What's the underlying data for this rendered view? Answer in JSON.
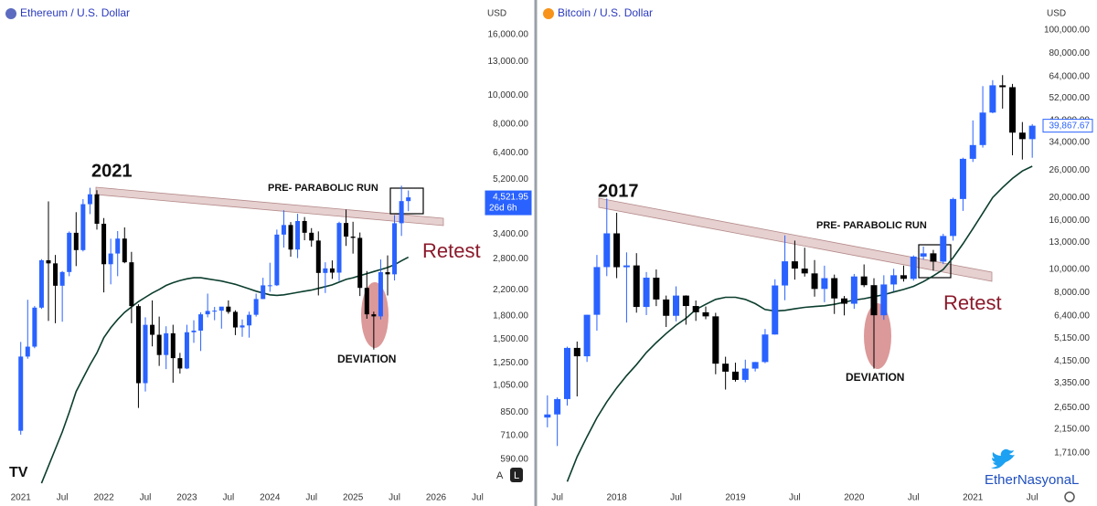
{
  "chart_data": [
    {
      "type": "candlestick",
      "title": "Ethereum / U.S. Dollar",
      "currency": "USD",
      "log_scale": true,
      "grid": false,
      "up_color": "#2962ff",
      "down_color": "#000000",
      "x": [
        "2021-01",
        "2021-02",
        "2021-03",
        "2021-04",
        "2021-05",
        "2021-06",
        "2021-07",
        "2021-08",
        "2021-09",
        "2021-10",
        "2021-11",
        "2021-12",
        "2022-01",
        "2022-02",
        "2022-03",
        "2022-04",
        "2022-05",
        "2022-06",
        "2022-07",
        "2022-08",
        "2022-09",
        "2022-10",
        "2022-11",
        "2022-12",
        "2023-01",
        "2023-02",
        "2023-03",
        "2023-04",
        "2023-05",
        "2023-06",
        "2023-07",
        "2023-08",
        "2023-09",
        "2023-10",
        "2023-11",
        "2023-12",
        "2024-01",
        "2024-02",
        "2024-03",
        "2024-04",
        "2024-05",
        "2024-06",
        "2024-07",
        "2024-08",
        "2024-09",
        "2024-10",
        "2024-11",
        "2024-12",
        "2025-01",
        "2025-02",
        "2025-03",
        "2025-04",
        "2025-05",
        "2025-06",
        "2025-07",
        "2025-08",
        "2025-09"
      ],
      "open": [
        737,
        1312,
        1417,
        1919,
        2773,
        2707,
        2275,
        2531,
        3433,
        3001,
        4288,
        4631,
        3683,
        2689,
        2922,
        3282,
        2730,
        1942,
        1067,
        1679,
        1554,
        1328,
        1572,
        1296,
        1196,
        1585,
        1605,
        1822,
        1870,
        1874,
        1934,
        1857,
        1645,
        1671,
        1815,
        2052,
        2282,
        2283,
        3385,
        3647,
        3014,
        3762,
        3434,
        3232,
        2513,
        2603,
        2519,
        3705,
        3333,
        3300,
        2237,
        1822,
        1793,
        2528,
        2486,
        3698,
        4392
      ],
      "high": [
        1470,
        2040,
        1943,
        2797,
        4380,
        2890,
        2550,
        3470,
        4030,
        4460,
        4870,
        4780,
        3850,
        3280,
        3480,
        3580,
        2960,
        1970,
        1780,
        2030,
        1790,
        1660,
        1680,
        1350,
        1680,
        1740,
        1850,
        2140,
        1930,
        1930,
        2030,
        1880,
        1750,
        1860,
        2140,
        2420,
        2720,
        3520,
        4090,
        3730,
        3980,
        3880,
        3560,
        3470,
        2730,
        2770,
        3740,
        4110,
        3740,
        3440,
        2550,
        1860,
        2790,
        2880,
        3940,
        4950,
        4770
      ],
      "low": [
        715,
        1290,
        1400,
        1900,
        1730,
        1700,
        1720,
        2450,
        2650,
        2970,
        3970,
        3520,
        2160,
        2300,
        2450,
        2710,
        1700,
        880,
        1000,
        1420,
        1220,
        1190,
        1070,
        1150,
        1190,
        1460,
        1370,
        1780,
        1740,
        1630,
        1830,
        1550,
        1530,
        1520,
        1790,
        2050,
        2170,
        2270,
        3060,
        2850,
        2820,
        3240,
        3080,
        2110,
        2150,
        2400,
        2360,
        3100,
        2920,
        2100,
        1760,
        1385,
        1750,
        2110,
        2370,
        3350,
        4060
      ],
      "close": [
        1312,
        1417,
        1919,
        2773,
        2707,
        2275,
        2531,
        3433,
        3001,
        4288,
        4631,
        3683,
        2689,
        2922,
        3282,
        2730,
        1942,
        1067,
        1679,
        1554,
        1328,
        1572,
        1296,
        1196,
        1585,
        1605,
        1822,
        1870,
        1874,
        1934,
        1857,
        1645,
        1671,
        1815,
        2052,
        2282,
        2283,
        3385,
        3647,
        3014,
        3762,
        3434,
        3232,
        2513,
        2603,
        2519,
        3705,
        3333,
        3300,
        2237,
        1822,
        1793,
        2528,
        2486,
        3698,
        4392,
        4521.95
      ],
      "overlay": {
        "color": "#0b3d2e",
        "values": [
          null,
          null,
          null,
          490,
          560,
          640,
          730,
          850,
          1000,
          1110,
          1230,
          1350,
          1520,
          1640,
          1750,
          1850,
          1930,
          2010,
          2080,
          2150,
          2210,
          2280,
          2330,
          2370,
          2400,
          2420,
          2420,
          2400,
          2380,
          2360,
          2330,
          2300,
          2260,
          2220,
          2180,
          2150,
          2120,
          2110,
          2120,
          2140,
          2160,
          2180,
          2200,
          2230,
          2260,
          2290,
          2340,
          2390,
          2420,
          2460,
          2500,
          2540,
          2580,
          2620,
          2680,
          2760,
          2840
        ]
      },
      "last_price": {
        "value": 4521.95,
        "label": "4,521.95"
      },
      "countdown": "26d 6h",
      "xlim": [
        "2020-10",
        "2026-08"
      ],
      "xticks": [
        {
          "value": "2021-01",
          "label": "2021"
        },
        {
          "value": "2021-07",
          "label": "Jul"
        },
        {
          "value": "2022-01",
          "label": "2022"
        },
        {
          "value": "2022-07",
          "label": "Jul"
        },
        {
          "value": "2023-01",
          "label": "2023"
        },
        {
          "value": "2023-07",
          "label": "Jul"
        },
        {
          "value": "2024-01",
          "label": "2024"
        },
        {
          "value": "2024-07",
          "label": "Jul"
        },
        {
          "value": "2025-01",
          "label": "2025"
        },
        {
          "value": "2025-07",
          "label": "Jul"
        },
        {
          "value": "2026-01",
          "label": "2026"
        },
        {
          "value": "2026-07",
          "label": "Jul"
        }
      ],
      "ylim": [
        487,
        20960
      ],
      "yticks": [
        {
          "value": 590,
          "label": "590.00"
        },
        {
          "value": 710,
          "label": "710.00"
        },
        {
          "value": 850,
          "label": "850.00"
        },
        {
          "value": 1050,
          "label": "1,050.00"
        },
        {
          "value": 1250,
          "label": "1,250.00"
        },
        {
          "value": 1500,
          "label": "1,500.00"
        },
        {
          "value": 1800,
          "label": "1,800.00"
        },
        {
          "value": 2200,
          "label": "2,200.00"
        },
        {
          "value": 2800,
          "label": "2,800.00"
        },
        {
          "value": 3400,
          "label": "3,400.00"
        },
        {
          "value": 5200,
          "label": "5,200.00"
        },
        {
          "value": 6400,
          "label": "6,400.00"
        },
        {
          "value": 8000,
          "label": "8,000.00"
        },
        {
          "value": 10000,
          "label": "10,000.00"
        },
        {
          "value": 13000,
          "label": "13,000.00"
        },
        {
          "value": 16000,
          "label": "16,000.00"
        }
      ],
      "annotations": [
        "2021",
        "PRE- PARABOLIC RUN",
        "Retest",
        "DEVIATION"
      ],
      "buttons": [
        "A",
        "L"
      ]
    },
    {
      "type": "candlestick",
      "title": "Bitcoin / U.S. Dollar",
      "currency": "USD",
      "log_scale": true,
      "grid": false,
      "up_color": "#2962ff",
      "down_color": "#000000",
      "x": [
        "2017-06",
        "2017-07",
        "2017-08",
        "2017-09",
        "2017-10",
        "2017-11",
        "2017-12",
        "2018-01",
        "2018-02",
        "2018-03",
        "2018-04",
        "2018-05",
        "2018-06",
        "2018-07",
        "2018-08",
        "2018-09",
        "2018-10",
        "2018-11",
        "2018-12",
        "2019-01",
        "2019-02",
        "2019-03",
        "2019-04",
        "2019-05",
        "2019-06",
        "2019-07",
        "2019-08",
        "2019-09",
        "2019-10",
        "2019-11",
        "2019-12",
        "2020-01",
        "2020-02",
        "2020-03",
        "2020-04",
        "2020-05",
        "2020-06",
        "2020-07",
        "2020-08",
        "2020-09",
        "2020-10",
        "2020-11",
        "2020-12",
        "2021-01",
        "2021-02",
        "2021-03",
        "2021-04",
        "2021-05",
        "2021-06",
        "2021-07"
      ],
      "open": [
        2407,
        2480,
        2875,
        4703,
        4339,
        6468,
        10233,
        14156,
        10221,
        10397,
        6973,
        9240,
        7494,
        6404,
        7780,
        7037,
        6625,
        6371,
        4041,
        3742,
        3457,
        3854,
        4105,
        5350,
        8574,
        10817,
        10085,
        9630,
        8293,
        9199,
        7569,
        7193,
        9350,
        8599,
        6438,
        8658,
        9461,
        9137,
        11323,
        11680,
        10784,
        13804,
        19700,
        28990,
        33100,
        45240,
        58800,
        57750,
        37300,
        35040
      ],
      "high": [
        2980,
        2920,
        4760,
        5000,
        6470,
        11500,
        19800,
        17250,
        11790,
        11700,
        9760,
        10000,
        7780,
        8500,
        7800,
        7420,
        7000,
        6590,
        4320,
        4080,
        4200,
        4110,
        5640,
        9100,
        13880,
        13200,
        12330,
        10950,
        10370,
        9520,
        7750,
        9580,
        10500,
        9190,
        9460,
        10070,
        10380,
        11450,
        12470,
        12070,
        14100,
        19950,
        29300,
        41950,
        58350,
        61800,
        64850,
        59600,
        41300,
        40500
      ],
      "low": [
        2190,
        1830,
        2700,
        2950,
        4110,
        5550,
        9380,
        9200,
        6000,
        6600,
        6450,
        7030,
        5750,
        6070,
        5880,
        6100,
        6200,
        3650,
        3150,
        3400,
        3380,
        3750,
        4060,
        5340,
        7440,
        9070,
        9340,
        7700,
        7300,
        6520,
        6430,
        6850,
        8440,
        3850,
        6160,
        8100,
        8900,
        8980,
        10980,
        9880,
        10540,
        13200,
        17570,
        28130,
        32300,
        44950,
        47000,
        30000,
        28800,
        29300
      ],
      "close": [
        2480,
        2875,
        4703,
        4339,
        6468,
        10233,
        14156,
        10221,
        10397,
        6973,
        9240,
        7494,
        6404,
        7780,
        7037,
        6625,
        6371,
        4041,
        3742,
        3457,
        3854,
        4105,
        5350,
        8574,
        10817,
        10085,
        9630,
        8293,
        9199,
        7569,
        7193,
        9350,
        8599,
        6438,
        8658,
        9461,
        9137,
        11323,
        11680,
        10784,
        13804,
        19700,
        28990,
        33100,
        45240,
        58800,
        57750,
        37300,
        35040,
        39867.67
      ],
      "overlay": {
        "color": "#0b3d2e",
        "values": [
          null,
          null,
          1300,
          1650,
          2000,
          2400,
          2800,
          3200,
          3600,
          4000,
          4500,
          4950,
          5400,
          5850,
          6250,
          6800,
          7150,
          7500,
          7650,
          7650,
          7500,
          7200,
          6800,
          6700,
          6750,
          6850,
          6950,
          7000,
          7050,
          7150,
          7300,
          7450,
          7550,
          7700,
          7850,
          8050,
          8250,
          8500,
          8900,
          9400,
          10000,
          11200,
          12800,
          14800,
          17200,
          20000,
          22000,
          24000,
          25800,
          27000
        ]
      },
      "last_price": {
        "value": 39867.67,
        "label": "39,867.67"
      },
      "xlim": [
        "2017-05",
        "2021-08"
      ],
      "xticks": [
        {
          "value": "2017-07",
          "label": "Jul"
        },
        {
          "value": "2018-01",
          "label": "2018"
        },
        {
          "value": "2018-07",
          "label": "Jul"
        },
        {
          "value": "2019-01",
          "label": "2019"
        },
        {
          "value": "2019-07",
          "label": "Jul"
        },
        {
          "value": "2020-01",
          "label": "2020"
        },
        {
          "value": "2020-07",
          "label": "Jul"
        },
        {
          "value": "2021-01",
          "label": "2021"
        },
        {
          "value": "2021-07",
          "label": "Jul"
        }
      ],
      "ylim": [
        1269,
        133600
      ],
      "yticks": [
        {
          "value": 1710,
          "label": "1,710.00"
        },
        {
          "value": 2150,
          "label": "2,150.00"
        },
        {
          "value": 2650,
          "label": "2,650.00"
        },
        {
          "value": 3350,
          "label": "3,350.00"
        },
        {
          "value": 4150,
          "label": "4,150.00"
        },
        {
          "value": 5150,
          "label": "5,150.00"
        },
        {
          "value": 6400,
          "label": "6,400.00"
        },
        {
          "value": 8000,
          "label": "8,000.00"
        },
        {
          "value": 10000,
          "label": "10,000.00"
        },
        {
          "value": 13000,
          "label": "13,000.00"
        },
        {
          "value": 16000,
          "label": "16,000.00"
        },
        {
          "value": 20000,
          "label": "20,000.00"
        },
        {
          "value": 26000,
          "label": "26,000.00"
        },
        {
          "value": 34000,
          "label": "34,000.00"
        },
        {
          "value": 42000,
          "label": "42,000.00"
        },
        {
          "value": 52000,
          "label": "52,000.00"
        },
        {
          "value": 64000,
          "label": "64,000.00"
        },
        {
          "value": 80000,
          "label": "80,000.00"
        },
        {
          "value": 100000,
          "label": "100,000.00"
        }
      ],
      "annotations": [
        "2017",
        "PRE- PARABOLIC RUN",
        "Retest",
        "DEVIATION"
      ],
      "watermark": "EtherNasyonaL"
    }
  ]
}
